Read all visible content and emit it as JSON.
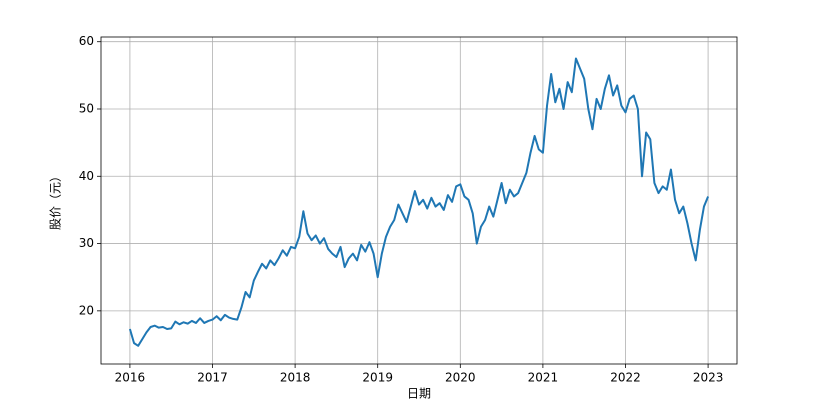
{
  "chart_data": {
    "type": "line",
    "xlabel": "日期",
    "ylabel": "股价（元）",
    "x": [
      2016.0,
      2016.05,
      2016.1,
      2016.15,
      2016.2,
      2016.25,
      2016.3,
      2016.35,
      2016.4,
      2016.45,
      2016.5,
      2016.55,
      2016.6,
      2016.65,
      2016.7,
      2016.75,
      2016.8,
      2016.85,
      2016.9,
      2016.95,
      2017.0,
      2017.05,
      2017.1,
      2017.15,
      2017.2,
      2017.25,
      2017.3,
      2017.35,
      2017.4,
      2017.45,
      2017.5,
      2017.55,
      2017.6,
      2017.65,
      2017.7,
      2017.75,
      2017.8,
      2017.85,
      2017.9,
      2017.95,
      2018.0,
      2018.05,
      2018.1,
      2018.15,
      2018.2,
      2018.25,
      2018.3,
      2018.35,
      2018.4,
      2018.45,
      2018.5,
      2018.55,
      2018.6,
      2018.65,
      2018.7,
      2018.75,
      2018.8,
      2018.85,
      2018.9,
      2018.95,
      2019.0,
      2019.05,
      2019.1,
      2019.15,
      2019.2,
      2019.25,
      2019.3,
      2019.35,
      2019.4,
      2019.45,
      2019.5,
      2019.55,
      2019.6,
      2019.65,
      2019.7,
      2019.75,
      2019.8,
      2019.85,
      2019.9,
      2019.95,
      2020.0,
      2020.05,
      2020.1,
      2020.15,
      2020.2,
      2020.25,
      2020.3,
      2020.35,
      2020.4,
      2020.45,
      2020.5,
      2020.55,
      2020.6,
      2020.65,
      2020.7,
      2020.75,
      2020.8,
      2020.85,
      2020.9,
      2020.95,
      2021.0,
      2021.05,
      2021.1,
      2021.15,
      2021.2,
      2021.25,
      2021.3,
      2021.35,
      2021.4,
      2021.45,
      2021.5,
      2021.55,
      2021.6,
      2021.65,
      2021.7,
      2021.75,
      2021.8,
      2021.85,
      2021.9,
      2021.95,
      2022.0,
      2022.05,
      2022.1,
      2022.15,
      2022.2,
      2022.25,
      2022.3,
      2022.35,
      2022.4,
      2022.45,
      2022.5,
      2022.55,
      2022.6,
      2022.65,
      2022.7,
      2022.75,
      2022.8,
      2022.85,
      2022.9,
      2022.95,
      2023.0
    ],
    "series": [
      {
        "color": "#1f77b4",
        "values": [
          17.3,
          15.2,
          14.8,
          15.8,
          16.8,
          17.6,
          17.8,
          17.5,
          17.6,
          17.3,
          17.4,
          18.4,
          18.0,
          18.3,
          18.1,
          18.5,
          18.2,
          18.9,
          18.2,
          18.5,
          18.7,
          19.2,
          18.6,
          19.4,
          19.0,
          18.8,
          18.7,
          20.5,
          22.8,
          22.0,
          24.5,
          25.8,
          27.0,
          26.3,
          27.5,
          26.8,
          27.8,
          29.0,
          28.2,
          29.5,
          29.3,
          31.0,
          34.8,
          31.5,
          30.5,
          31.2,
          30.0,
          30.8,
          29.2,
          28.5,
          28.0,
          29.5,
          26.5,
          27.8,
          28.5,
          27.5,
          29.8,
          28.8,
          30.2,
          28.5,
          25.0,
          28.5,
          31.0,
          32.5,
          33.5,
          35.8,
          34.5,
          33.2,
          35.5,
          37.8,
          35.8,
          36.5,
          35.2,
          36.8,
          35.5,
          36.0,
          35.0,
          37.2,
          36.2,
          38.5,
          38.8,
          37.0,
          36.5,
          34.5,
          30.0,
          32.5,
          33.5,
          35.5,
          34.0,
          36.5,
          39.0,
          36.0,
          38.0,
          37.0,
          37.5,
          39.0,
          40.5,
          43.5,
          46.0,
          44.0,
          43.5,
          50.5,
          55.2,
          51.0,
          53.0,
          50.0,
          54.0,
          52.5,
          57.5,
          56.0,
          54.5,
          50.0,
          47.0,
          51.5,
          50.0,
          53.0,
          55.0,
          52.0,
          53.5,
          50.5,
          49.5,
          51.5,
          52.0,
          50.0,
          40.0,
          46.5,
          45.5,
          39.0,
          37.5,
          38.5,
          38.0,
          41.0,
          36.5,
          34.5,
          35.5,
          33.0,
          30.0,
          27.5,
          32.0,
          35.5,
          37.0
        ]
      }
    ],
    "xlim": [
      2015.65,
      2023.35
    ],
    "ylim": [
      12.1,
      60.7
    ],
    "xticks": [
      2016,
      2017,
      2018,
      2019,
      2020,
      2021,
      2022,
      2023
    ],
    "yticks": [
      20,
      30,
      40,
      50,
      60
    ],
    "grid": true
  }
}
